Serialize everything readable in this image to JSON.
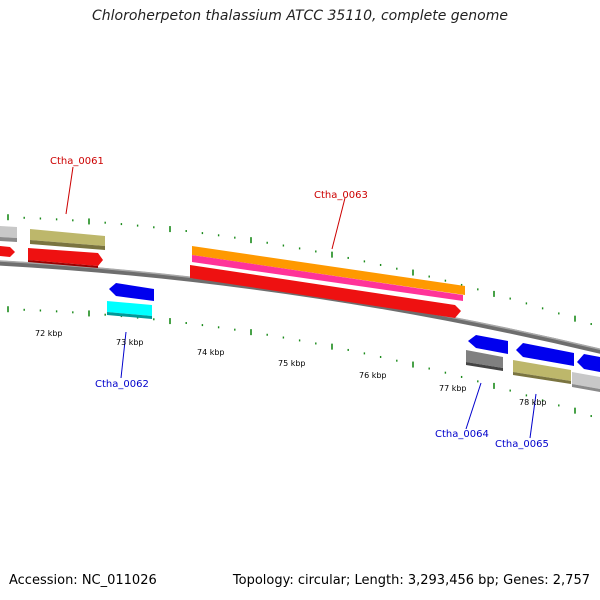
{
  "title": "Chloroherpeton thalassium ATCC 35110, complete genome",
  "footer": {
    "accession": "Accession: NC_011026",
    "summary": "Topology: circular; Length: 3,293,456 bp; Genes: 2,757"
  },
  "colors": {
    "backbone": "#808080",
    "tick": "#1a8a1a",
    "top_strand_label": "#cc0000",
    "bottom_strand_label": "#0000cc"
  },
  "tick_labels": [
    "72 kbp",
    "73 kbp",
    "74 kbp",
    "75 kbp",
    "76 kbp",
    "77 kbp",
    "78 kbp"
  ],
  "gene_labels": [
    {
      "text": "Ctha_0061",
      "strand": "top"
    },
    {
      "text": "Ctha_0063",
      "strand": "top"
    },
    {
      "text": "Ctha_0062",
      "strand": "bottom"
    },
    {
      "text": "Ctha_0064",
      "strand": "bottom"
    },
    {
      "text": "Ctha_0065",
      "strand": "bottom"
    }
  ]
}
